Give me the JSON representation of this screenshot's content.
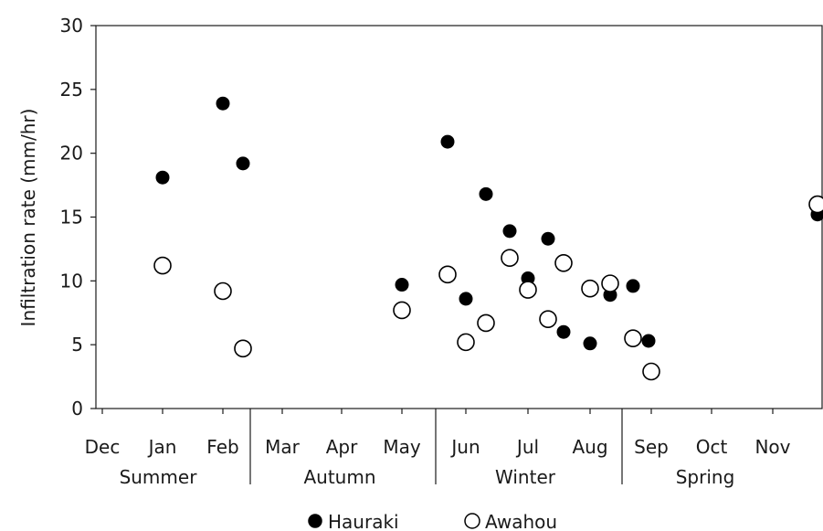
{
  "chart_data": {
    "type": "scatter",
    "ylabel": "Infiltration rate (mm/hr)",
    "ylim": [
      0,
      30
    ],
    "yticks": [
      0,
      5,
      10,
      15,
      20,
      25,
      30
    ],
    "months": [
      "Dec",
      "Jan",
      "Feb",
      "Mar",
      "Apr",
      "May",
      "Jun",
      "Jul",
      "Aug",
      "Sep",
      "Oct",
      "Nov"
    ],
    "seasons": [
      "Summer",
      "Autumn",
      "Winter",
      "Spring"
    ],
    "legend_position": "bottom",
    "grid": false,
    "series": [
      {
        "name": "Hauraki",
        "marker": "filled-circle",
        "color": "#000000",
        "points": [
          {
            "x": "Jan",
            "y": 18.1
          },
          {
            "x": "Feb",
            "y": 23.9
          },
          {
            "x": "Feb (late)",
            "y": 19.2
          },
          {
            "x": "May",
            "y": 9.7
          },
          {
            "x": "Jun (early)",
            "y": 20.9
          },
          {
            "x": "Jun",
            "y": 8.6
          },
          {
            "x": "Jun (late)",
            "y": 16.8
          },
          {
            "x": "Jul (early)",
            "y": 13.9
          },
          {
            "x": "Jul",
            "y": 10.2
          },
          {
            "x": "Jul (late)",
            "y": 13.3
          },
          {
            "x": "Jul (late)",
            "y": 6.0
          },
          {
            "x": "Aug",
            "y": 5.1
          },
          {
            "x": "Aug (late)",
            "y": 8.9
          },
          {
            "x": "Sep (early)",
            "y": 9.6
          },
          {
            "x": "Sep",
            "y": 5.3
          },
          {
            "x": "Nov (late)",
            "y": 15.2
          }
        ]
      },
      {
        "name": "Awahou",
        "marker": "open-circle",
        "color": "#000000",
        "points": [
          {
            "x": "Jan",
            "y": 11.2
          },
          {
            "x": "Feb",
            "y": 9.2
          },
          {
            "x": "Feb (late)",
            "y": 4.7
          },
          {
            "x": "May",
            "y": 7.7
          },
          {
            "x": "Jun (early)",
            "y": 10.5
          },
          {
            "x": "Jun",
            "y": 5.2
          },
          {
            "x": "Jun (late)",
            "y": 6.7
          },
          {
            "x": "Jul (early)",
            "y": 11.8
          },
          {
            "x": "Jul",
            "y": 9.3
          },
          {
            "x": "Jul (late)",
            "y": 7.0
          },
          {
            "x": "Jul (late)",
            "y": 11.4
          },
          {
            "x": "Aug",
            "y": 9.4
          },
          {
            "x": "Aug (late)",
            "y": 9.8
          },
          {
            "x": "Sep (early)",
            "y": 5.5
          },
          {
            "x": "Sep",
            "y": 2.9
          },
          {
            "x": "Nov (late)",
            "y": 16.0
          }
        ]
      }
    ]
  }
}
